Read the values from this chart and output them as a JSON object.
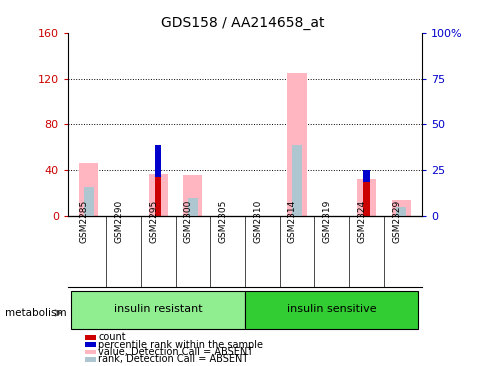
{
  "title": "GDS158 / AA214658_at",
  "samples": [
    "GSM2285",
    "GSM2290",
    "GSM2295",
    "GSM2300",
    "GSM2305",
    "GSM2310",
    "GSM2314",
    "GSM2319",
    "GSM2324",
    "GSM2329"
  ],
  "groups": [
    {
      "label": "insulin resistant",
      "start": 0,
      "end": 5,
      "color": "#90ee90"
    },
    {
      "label": "insulin sensitive",
      "start": 5,
      "end": 10,
      "color": "#32cd32"
    }
  ],
  "group_label": "metabolism",
  "left_ylim": [
    0,
    160
  ],
  "left_yticks": [
    0,
    40,
    80,
    120,
    160
  ],
  "right_ylim": [
    0,
    100
  ],
  "right_yticks": [
    0,
    25,
    50,
    75,
    100
  ],
  "right_yticklabels": [
    "0",
    "25",
    "50",
    "75",
    "100%"
  ],
  "value_absent": [
    46,
    0,
    37,
    36,
    0,
    0,
    125,
    0,
    32,
    14
  ],
  "rank_absent_pct": [
    16,
    0,
    0,
    10,
    0,
    0,
    39,
    0,
    0,
    5
  ],
  "count": [
    0,
    0,
    34,
    0,
    0,
    0,
    0,
    0,
    30,
    0
  ],
  "percentile": [
    0,
    0,
    28,
    0,
    0,
    0,
    0,
    0,
    10,
    0
  ],
  "colors": {
    "count": "#cc0000",
    "percentile": "#0000cc",
    "value_absent": "#ffb6c1",
    "rank_absent": "#aec6cf",
    "left_axis": "#cc0000",
    "right_axis": "#0000cc",
    "tick_label_area": "#c8c8c8"
  },
  "legend_items": [
    {
      "color": "#cc0000",
      "label": "count"
    },
    {
      "color": "#0000cc",
      "label": "percentile rank within the sample"
    },
    {
      "color": "#ffb6c1",
      "label": "value, Detection Call = ABSENT"
    },
    {
      "color": "#aec6cf",
      "label": "rank, Detection Call = ABSENT"
    }
  ]
}
